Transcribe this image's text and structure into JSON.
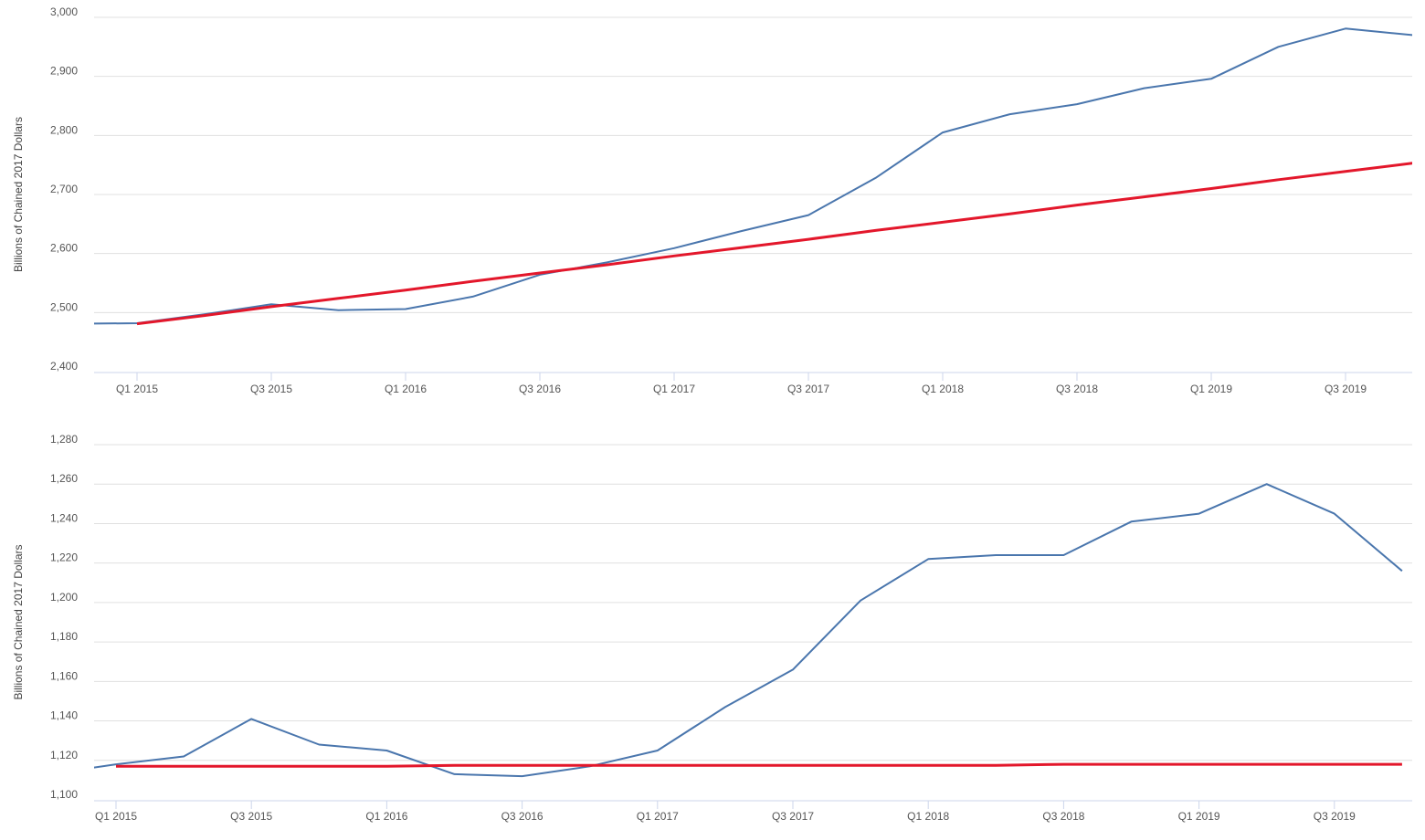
{
  "colors": {
    "actual_line": "#4a76ad",
    "trend_line": "#e3172b",
    "grid": "#e0e0e0",
    "axis": "#ccd6eb",
    "tick_text": "#555555"
  },
  "chart_data": [
    {
      "type": "line",
      "title": "",
      "xlabel": "",
      "ylabel": "Billions of Chained 2017 Dollars",
      "ylim": [
        2400,
        3000
      ],
      "yticks": [
        "2,400",
        "2,500",
        "2,600",
        "2,700",
        "2,800",
        "2,900",
        "3,000"
      ],
      "xtick_labels": [
        "Q1 2015",
        "Q3 2015",
        "Q1 2016",
        "Q3 2016",
        "Q1 2017",
        "Q3 2017",
        "Q1 2018",
        "Q3 2018",
        "Q1 2019",
        "Q3 2019"
      ],
      "x": [
        "Q4 2014",
        "Q1 2015",
        "Q2 2015",
        "Q3 2015",
        "Q4 2015",
        "Q1 2016",
        "Q2 2016",
        "Q3 2016",
        "Q4 2016",
        "Q1 2017",
        "Q2 2017",
        "Q3 2017",
        "Q4 2017",
        "Q1 2018",
        "Q2 2018",
        "Q3 2018",
        "Q4 2018",
        "Q1 2019",
        "Q2 2019",
        "Q3 2019",
        "Q4 2019"
      ],
      "series": [
        {
          "values": [
            2481,
            2482,
            2497,
            2514,
            2504,
            2506,
            2527,
            2564,
            2585,
            2609,
            2638,
            2665,
            2728,
            2805,
            2836,
            2853,
            2880,
            2896,
            2950,
            2981,
            2970
          ]
        },
        {
          "values": [
            null,
            2481,
            2495,
            2510,
            2524,
            2538,
            2553,
            2567,
            2581,
            2596,
            2610,
            2624,
            2639,
            2653,
            2667,
            2682,
            2696,
            2710,
            2725,
            2739,
            2753
          ]
        }
      ],
      "grid": true
    },
    {
      "type": "line",
      "title": "",
      "xlabel": "",
      "ylabel": "Billions of Chained 2017 Dollars",
      "ylim": [
        1100,
        1280
      ],
      "yticks": [
        "1,100",
        "1,120",
        "1,140",
        "1,160",
        "1,180",
        "1,200",
        "1,220",
        "1,240",
        "1,260",
        "1,280"
      ],
      "xtick_labels": [
        "Q1 2015",
        "Q3 2015",
        "Q1 2016",
        "Q3 2016",
        "Q1 2017",
        "Q3 2017",
        "Q1 2018",
        "Q3 2018",
        "Q1 2019",
        "Q3 2019"
      ],
      "x": [
        "Q4 2014",
        "Q1 2015",
        "Q2 2015",
        "Q3 2015",
        "Q4 2015",
        "Q1 2016",
        "Q2 2016",
        "Q3 2016",
        "Q4 2016",
        "Q1 2017",
        "Q2 2017",
        "Q3 2017",
        "Q4 2017",
        "Q1 2018",
        "Q2 2018",
        "Q3 2018",
        "Q4 2018",
        "Q1 2019",
        "Q2 2019",
        "Q3 2019",
        "Q4 2019"
      ],
      "series": [
        {
          "values": [
            1113,
            1118,
            1122,
            1141,
            1128,
            1125,
            1113,
            1112,
            1117,
            1125,
            1147,
            1166,
            1201,
            1222,
            1224,
            1224,
            1241,
            1245,
            1260,
            1245,
            1216
          ]
        },
        {
          "values": [
            null,
            1117,
            1117,
            1117,
            1117,
            1117,
            1117.5,
            1117.5,
            1117.5,
            1117.5,
            1117.5,
            1117.5,
            1117.5,
            1117.5,
            1117.5,
            1118,
            1118,
            1118,
            1118,
            1118,
            1118
          ]
        }
      ],
      "grid": true
    }
  ]
}
